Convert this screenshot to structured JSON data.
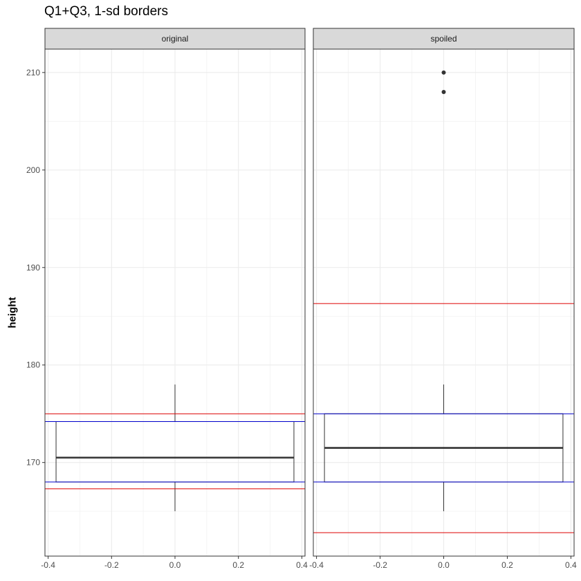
{
  "chart_data": {
    "type": "boxplot",
    "title": "Q1+Q3, 1-sd borders",
    "ylabel": "height",
    "xlabel": "",
    "xlim": [
      -0.41,
      0.41
    ],
    "ylim": [
      160.4,
      212.4
    ],
    "x_ticks": [
      -0.4,
      -0.2,
      0.0,
      0.2,
      0.4
    ],
    "x_tick_labels": [
      "-0.4",
      "-0.2",
      "0.0",
      "0.2",
      "0.4"
    ],
    "y_ticks": [
      170,
      180,
      190,
      200,
      210
    ],
    "y_tick_labels": [
      "170",
      "180",
      "190",
      "200",
      "210"
    ],
    "grid": true,
    "box_color": "#333333",
    "quartile_line_color": "#0000cc",
    "sd_line_color": "#dd0000",
    "strip_color": "#d9d9d9",
    "panels": [
      {
        "label": "original",
        "box": {
          "x_center": 0.0,
          "half_width": 0.375,
          "lower_whisker": 165,
          "q1": 168,
          "median": 170.5,
          "q3": 174.2,
          "upper_whisker": 178
        },
        "outliers": [],
        "quartile_lines": [
          168,
          174.2
        ],
        "sd_lines": [
          167.3,
          175.0
        ]
      },
      {
        "label": "spoiled",
        "box": {
          "x_center": 0.0,
          "half_width": 0.375,
          "lower_whisker": 165,
          "q1": 168,
          "median": 171.5,
          "q3": 175,
          "upper_whisker": 178
        },
        "outliers": [
          208,
          210
        ],
        "quartile_lines": [
          168,
          175
        ],
        "sd_lines": [
          162.8,
          186.3
        ]
      }
    ]
  }
}
